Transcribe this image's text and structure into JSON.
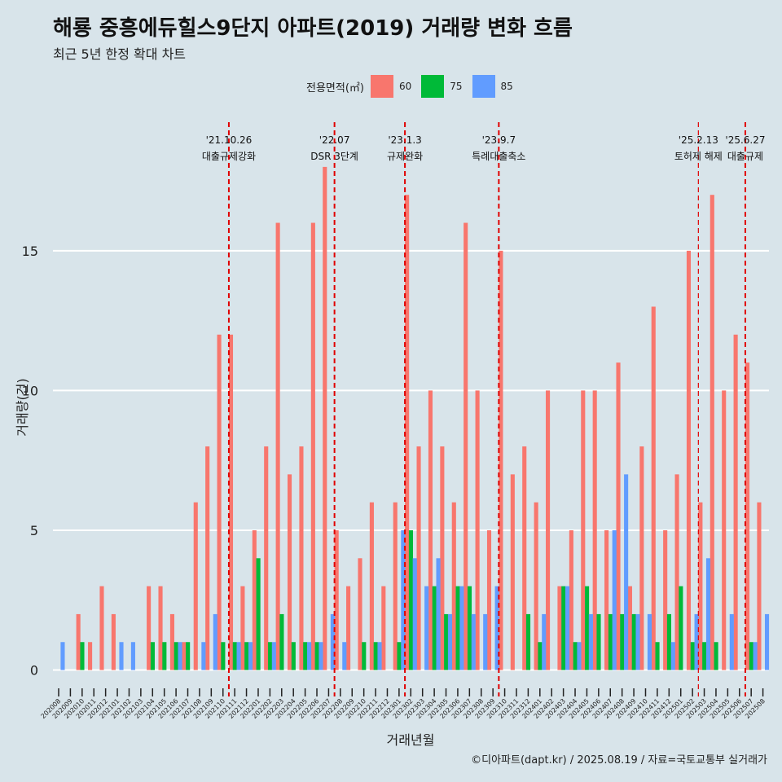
{
  "title": "해룡 중흥에듀힐스9단지 아파트(2019) 거래량 변화 흐름",
  "subtitle": "최근 5년 한정 확대 차트",
  "caption": "©디아파트(dapt.kr) / 2025.08.19 / 자료=국토교통부 실거래가",
  "legend": {
    "title": "전용면적(㎡)",
    "items": [
      {
        "label": "60",
        "color": "#f8766d"
      },
      {
        "label": "75",
        "color": "#00ba38"
      },
      {
        "label": "85",
        "color": "#619cff"
      }
    ]
  },
  "chart_data": {
    "type": "bar",
    "xlabel": "거래년월",
    "ylabel": "거래량(건)",
    "ylim": [
      -0.8,
      19.6
    ],
    "yticks": [
      0,
      5,
      10,
      15
    ],
    "grid": "horizontal",
    "legend_position": "top",
    "categories": [
      "202008",
      "202009",
      "202010",
      "202011",
      "202012",
      "202101",
      "202102",
      "202103",
      "202104",
      "202105",
      "202106",
      "202107",
      "202108",
      "202109",
      "202110",
      "202111",
      "202112",
      "202201",
      "202202",
      "202203",
      "202204",
      "202205",
      "202206",
      "202207",
      "202208",
      "202209",
      "202210",
      "202211",
      "202212",
      "202301",
      "202302",
      "202303",
      "202304",
      "202305",
      "202306",
      "202307",
      "202308",
      "202309",
      "202310",
      "202311",
      "202312",
      "202401",
      "202402",
      "202403",
      "202404",
      "202405",
      "202406",
      "202407",
      "202408",
      "202409",
      "202410",
      "202411",
      "202412",
      "202501",
      "202502",
      "202503",
      "202504",
      "202505",
      "202506",
      "202507",
      "202508"
    ],
    "series": [
      {
        "name": "60",
        "color": "#f8766d",
        "values": [
          0,
          0,
          2,
          1,
          3,
          2,
          0,
          0,
          3,
          3,
          2,
          1,
          6,
          8,
          12,
          12,
          3,
          5,
          8,
          16,
          7,
          8,
          16,
          18,
          5,
          3,
          4,
          6,
          3,
          6,
          17,
          8,
          10,
          8,
          6,
          16,
          10,
          5,
          15,
          7,
          8,
          6,
          10,
          3,
          5,
          10,
          10,
          5,
          11,
          3,
          8,
          13,
          5,
          7,
          15,
          6,
          17,
          10,
          12,
          11,
          6
        ]
      },
      {
        "name": "75",
        "color": "#00ba38",
        "values": [
          0,
          0,
          1,
          0,
          0,
          0,
          0,
          0,
          1,
          1,
          1,
          1,
          0,
          0,
          1,
          1,
          1,
          4,
          1,
          2,
          1,
          1,
          1,
          0,
          0,
          0,
          1,
          1,
          0,
          1,
          5,
          0,
          3,
          2,
          3,
          3,
          0,
          0,
          0,
          0,
          2,
          1,
          0,
          3,
          1,
          3,
          2,
          2,
          2,
          2,
          0,
          1,
          2,
          3,
          1,
          1,
          1,
          0,
          0,
          1,
          0
        ]
      },
      {
        "name": "85",
        "color": "#619cff",
        "values": [
          1,
          0,
          0,
          0,
          0,
          1,
          1,
          0,
          0,
          0,
          1,
          0,
          1,
          2,
          0,
          1,
          1,
          0,
          1,
          0,
          0,
          1,
          1,
          2,
          1,
          0,
          0,
          1,
          0,
          5,
          4,
          3,
          4,
          2,
          3,
          2,
          2,
          3,
          0,
          0,
          0,
          2,
          0,
          3,
          1,
          2,
          0,
          5,
          7,
          2,
          2,
          0,
          1,
          0,
          2,
          4,
          0,
          2,
          0,
          1,
          2
        ]
      }
    ],
    "events": [
      {
        "date_label": "'21.10.26",
        "text": "대출규제강화",
        "month": "202110"
      },
      {
        "date_label": "'22.07",
        "text": "DSR 3단계",
        "month": "202207"
      },
      {
        "date_label": "'23.1.3",
        "text": "규제완화",
        "month": "202301"
      },
      {
        "date_label": "'23.9.7",
        "text": "특례대출축소",
        "month": "202309"
      },
      {
        "date_label": "'25.2.13",
        "text": "토허제 해제",
        "month": "202502"
      },
      {
        "date_label": "'25.6.27",
        "text": "대출규제",
        "month": "202506"
      }
    ]
  }
}
